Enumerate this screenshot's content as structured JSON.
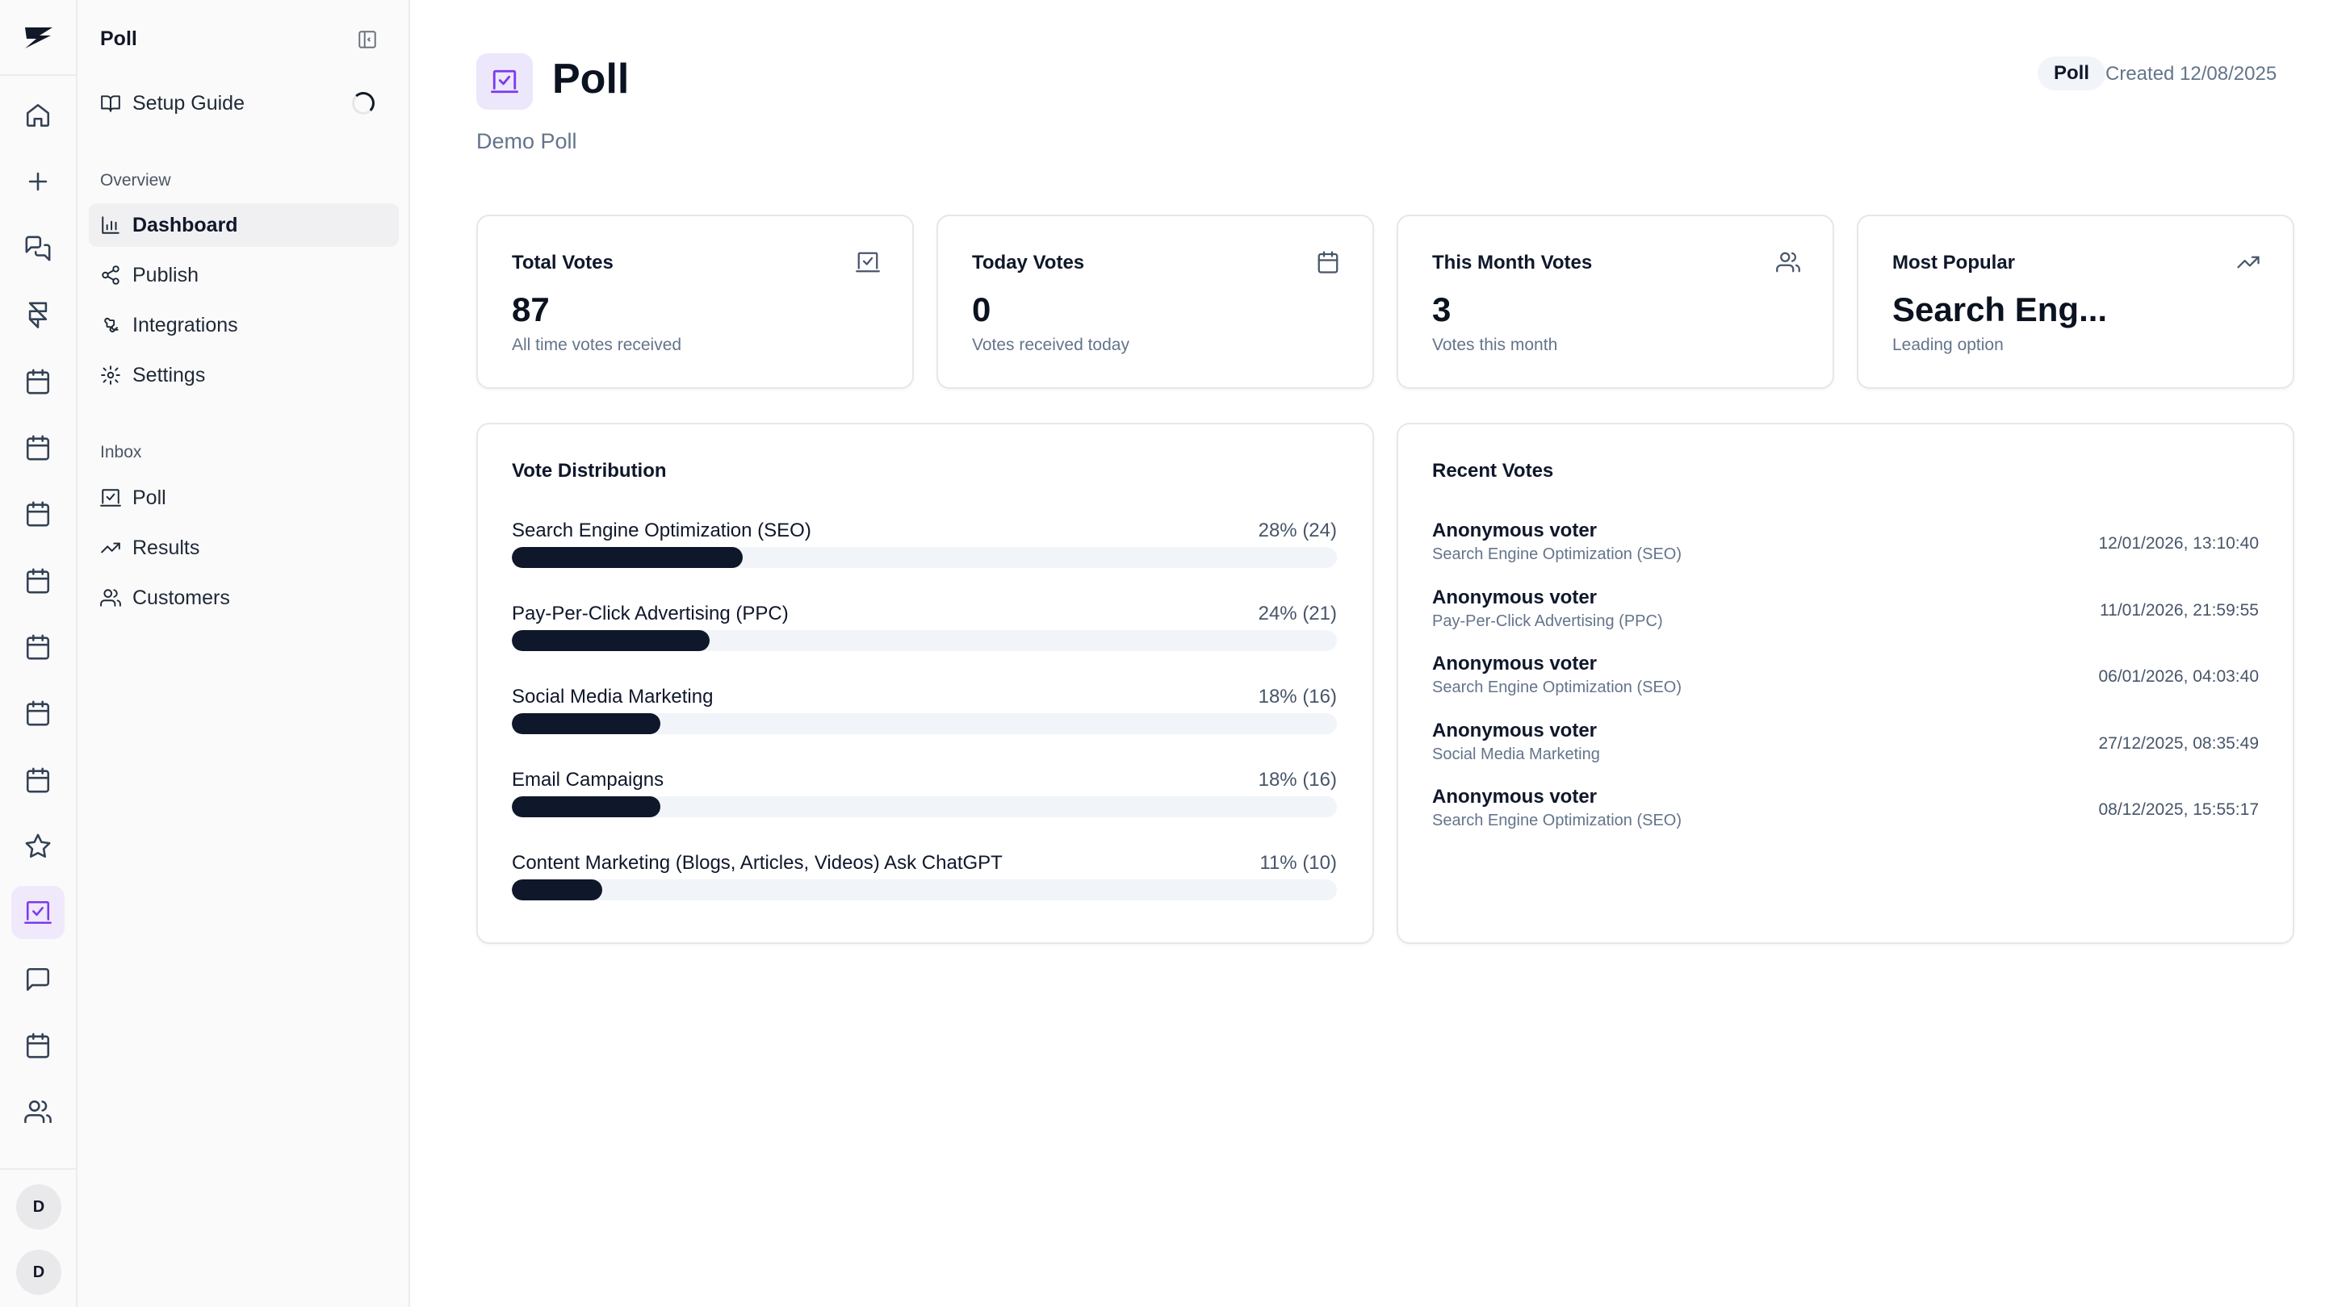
{
  "rail": {
    "items": [
      {
        "icon": "home-icon"
      },
      {
        "icon": "plus-icon"
      },
      {
        "icon": "messages-icon"
      },
      {
        "icon": "framer-icon"
      },
      {
        "icon": "calendar-icon"
      },
      {
        "icon": "calendar-icon"
      },
      {
        "icon": "calendar-icon"
      },
      {
        "icon": "calendar-icon"
      },
      {
        "icon": "calendar-icon"
      },
      {
        "icon": "calendar-icon"
      },
      {
        "icon": "calendar-icon"
      },
      {
        "icon": "star-icon"
      },
      {
        "icon": "poll-icon",
        "active": true
      },
      {
        "icon": "chat-icon"
      },
      {
        "icon": "calendar-icon"
      },
      {
        "icon": "users-icon"
      }
    ],
    "avatars": [
      "D",
      "D"
    ]
  },
  "sidebar": {
    "title": "Poll",
    "setup_guide": "Setup Guide",
    "overview_label": "Overview",
    "overview_items": [
      "Dashboard",
      "Publish",
      "Integrations",
      "Settings"
    ],
    "inbox_label": "Inbox",
    "inbox_items": [
      "Poll",
      "Results",
      "Customers"
    ]
  },
  "header": {
    "title": "Poll",
    "subtitle": "Demo Poll",
    "badge": "Poll",
    "created": "Created 12/08/2025"
  },
  "stats": [
    {
      "label": "Total Votes",
      "value": "87",
      "desc": "All time votes received",
      "icon": "poll-icon"
    },
    {
      "label": "Today Votes",
      "value": "0",
      "desc": "Votes received today",
      "icon": "calendar-icon"
    },
    {
      "label": "This Month Votes",
      "value": "3",
      "desc": "Votes this month",
      "icon": "users-icon"
    },
    {
      "label": "Most Popular",
      "value": "Search Eng...",
      "desc": "Leading option",
      "icon": "trending-up-icon"
    }
  ],
  "distribution": {
    "title": "Vote Distribution",
    "rows": [
      {
        "label": "Search Engine Optimization (SEO)",
        "pct": "28% (24)",
        "fraction": 0.28
      },
      {
        "label": "Pay-Per-Click Advertising (PPC)",
        "pct": "24% (21)",
        "fraction": 0.24
      },
      {
        "label": "Social Media Marketing",
        "pct": "18% (16)",
        "fraction": 0.18
      },
      {
        "label": "Email Campaigns",
        "pct": "18% (16)",
        "fraction": 0.18
      },
      {
        "label": "Content Marketing (Blogs, Articles, Videos) Ask ChatGPT",
        "pct": "11% (10)",
        "fraction": 0.11
      }
    ]
  },
  "recent": {
    "title": "Recent Votes",
    "rows": [
      {
        "voter": "Anonymous voter",
        "choice": "Search Engine Optimization (SEO)",
        "time": "12/01/2026, 13:10:40"
      },
      {
        "voter": "Anonymous voter",
        "choice": "Pay-Per-Click Advertising (PPC)",
        "time": "11/01/2026, 21:59:55"
      },
      {
        "voter": "Anonymous voter",
        "choice": "Search Engine Optimization (SEO)",
        "time": "06/01/2026, 04:03:40"
      },
      {
        "voter": "Anonymous voter",
        "choice": "Social Media Marketing",
        "time": "27/12/2025, 08:35:49"
      },
      {
        "voter": "Anonymous voter",
        "choice": "Search Engine Optimization (SEO)",
        "time": "08/12/2025, 15:55:17"
      }
    ]
  }
}
